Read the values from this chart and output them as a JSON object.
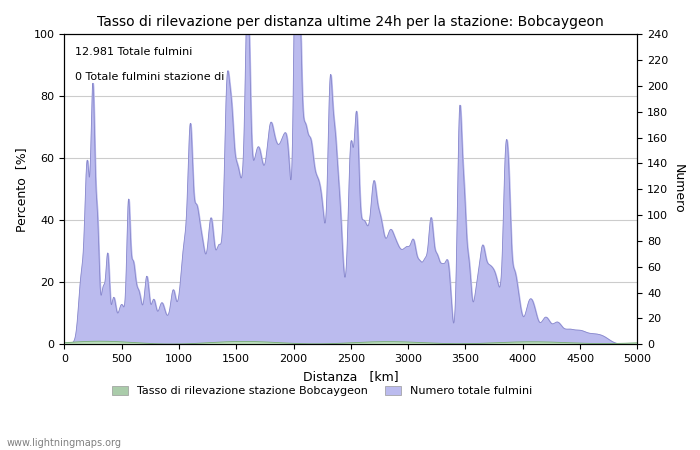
{
  "title": "Tasso di rilevazione per distanza ultime 24h per la stazione: Bobcaygeon",
  "xlabel": "Distanza   [km]",
  "ylabel_left": "Percento  [%]",
  "ylabel_right": "Numero",
  "annotation_line1": "12.981 Totale fulmini",
  "annotation_line2": "0 Totale fulmini stazione di",
  "legend_label1": "Tasso di rilevazione stazione Bobcaygeon",
  "legend_label2": "Numero totale fulmini",
  "watermark": "www.lightningmaps.org",
  "xlim": [
    0,
    5000
  ],
  "ylim_left": [
    0,
    100
  ],
  "ylim_right": [
    0,
    240
  ],
  "xticks": [
    0,
    500,
    1000,
    1500,
    2000,
    2500,
    3000,
    3500,
    4000,
    4500,
    5000
  ],
  "yticks_left": [
    0,
    20,
    40,
    60,
    80,
    100
  ],
  "yticks_right": [
    0,
    20,
    40,
    60,
    80,
    100,
    120,
    140,
    160,
    180,
    200,
    220,
    240
  ],
  "grid_color": "#cccccc",
  "line_color": "#8888cc",
  "fill_color_blue": "#bbbbee",
  "fill_color_green": "#bbddbb",
  "legend_color_green": "#aaccaa",
  "legend_color_blue": "#bbbbee",
  "figsize": [
    7.0,
    4.5
  ],
  "dpi": 100
}
